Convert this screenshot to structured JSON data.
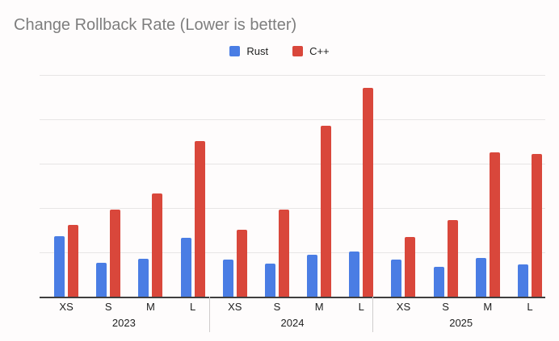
{
  "title": "Change Rollback Rate (Lower is better)",
  "legend": {
    "items": [
      {
        "label": "Rust",
        "color": "#4a7de4"
      },
      {
        "label": "C++",
        "color": "#d9473b"
      }
    ]
  },
  "chart_data": {
    "type": "bar",
    "title": "Change Rollback Rate (Lower is better)",
    "legend_position": "top",
    "grid": true,
    "y_axis_labels_visible": false,
    "ylim": [
      0,
      25
    ],
    "gridline_step": 5,
    "groups": [
      {
        "year": "2023",
        "sizes": [
          "XS",
          "S",
          "M",
          "L"
        ]
      },
      {
        "year": "2024",
        "sizes": [
          "XS",
          "S",
          "M",
          "L"
        ]
      },
      {
        "year": "2025",
        "sizes": [
          "XS",
          "S",
          "M",
          "L"
        ]
      }
    ],
    "categories": [
      "XS",
      "S",
      "M",
      "L",
      "XS",
      "S",
      "M",
      "L",
      "XS",
      "S",
      "M",
      "L"
    ],
    "series": [
      {
        "name": "Rust",
        "color": "#4a7de4",
        "values": [
          6.8,
          3.8,
          4.3,
          6.6,
          4.2,
          3.7,
          4.7,
          5.1,
          4.2,
          3.4,
          4.4,
          3.6
        ]
      },
      {
        "name": "C++",
        "color": "#d9473b",
        "values": [
          8.1,
          9.8,
          11.6,
          17.5,
          7.5,
          9.8,
          19.3,
          23.5,
          6.7,
          8.6,
          16.3,
          16.1
        ]
      }
    ]
  }
}
